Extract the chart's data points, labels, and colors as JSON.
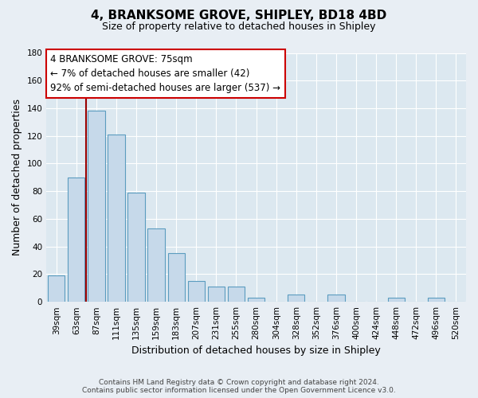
{
  "title": "4, BRANKSOME GROVE, SHIPLEY, BD18 4BD",
  "subtitle": "Size of property relative to detached houses in Shipley",
  "xlabel": "Distribution of detached houses by size in Shipley",
  "ylabel": "Number of detached properties",
  "categories": [
    "39sqm",
    "63sqm",
    "87sqm",
    "111sqm",
    "135sqm",
    "159sqm",
    "183sqm",
    "207sqm",
    "231sqm",
    "255sqm",
    "280sqm",
    "304sqm",
    "328sqm",
    "352sqm",
    "376sqm",
    "400sqm",
    "424sqm",
    "448sqm",
    "472sqm",
    "496sqm",
    "520sqm"
  ],
  "values": [
    19,
    90,
    138,
    121,
    79,
    53,
    35,
    15,
    11,
    11,
    3,
    0,
    5,
    0,
    5,
    0,
    0,
    3,
    0,
    3,
    0
  ],
  "bar_color": "#c6d9ea",
  "bar_edge_color": "#5b9cbf",
  "property_line_color": "#990000",
  "ylim": [
    0,
    180
  ],
  "yticks": [
    0,
    20,
    40,
    60,
    80,
    100,
    120,
    140,
    160,
    180
  ],
  "annotation_title": "4 BRANKSOME GROVE: 75sqm",
  "annotation_line1": "← 7% of detached houses are smaller (42)",
  "annotation_line2": "92% of semi-detached houses are larger (537) →",
  "annotation_box_edge_color": "#cc0000",
  "footer_line1": "Contains HM Land Registry data © Crown copyright and database right 2024.",
  "footer_line2": "Contains public sector information licensed under the Open Government Licence v3.0.",
  "background_color": "#e8eef4",
  "plot_bg_color": "#dce8f0",
  "grid_color": "#ffffff",
  "title_fontsize": 11,
  "subtitle_fontsize": 9,
  "ylabel_fontsize": 9,
  "xlabel_fontsize": 9,
  "tick_fontsize": 7.5,
  "annotation_fontsize": 8.5,
  "footer_fontsize": 6.5
}
